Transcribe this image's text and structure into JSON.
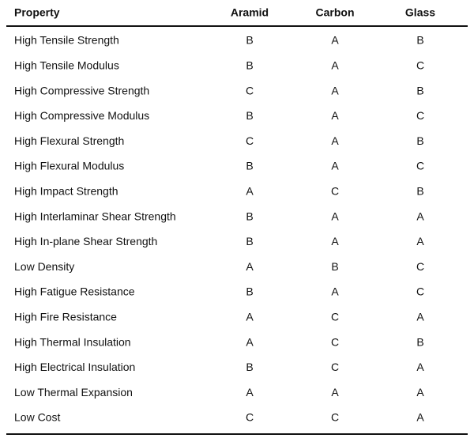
{
  "table": {
    "header": [
      "Property",
      "Aramid",
      "Carbon",
      "Glass"
    ],
    "rows": [
      [
        "High Tensile Strength",
        "B",
        "A",
        "B"
      ],
      [
        "High Tensile Modulus",
        "B",
        "A",
        "C"
      ],
      [
        "High Compressive Strength",
        "C",
        "A",
        "B"
      ],
      [
        "High Compressive Modulus",
        "B",
        "A",
        "C"
      ],
      [
        "High Flexural Strength",
        "C",
        "A",
        "B"
      ],
      [
        "High Flexural Modulus",
        "B",
        "A",
        "C"
      ],
      [
        "High Impact Strength",
        "A",
        "C",
        "B"
      ],
      [
        "High Interlaminar Shear Strength",
        "B",
        "A",
        "A"
      ],
      [
        "High In-plane Shear Strength",
        "B",
        "A",
        "A"
      ],
      [
        "Low Density",
        "A",
        "B",
        "C"
      ],
      [
        "High Fatigue Resistance",
        "B",
        "A",
        "C"
      ],
      [
        "High Fire Resistance",
        "A",
        "C",
        "A"
      ],
      [
        "High Thermal Insulation",
        "A",
        "C",
        "B"
      ],
      [
        "High Electrical Insulation",
        "B",
        "C",
        "A"
      ],
      [
        "Low Thermal Expansion",
        "A",
        "A",
        "A"
      ],
      [
        "Low Cost",
        "C",
        "C",
        "A"
      ]
    ]
  }
}
